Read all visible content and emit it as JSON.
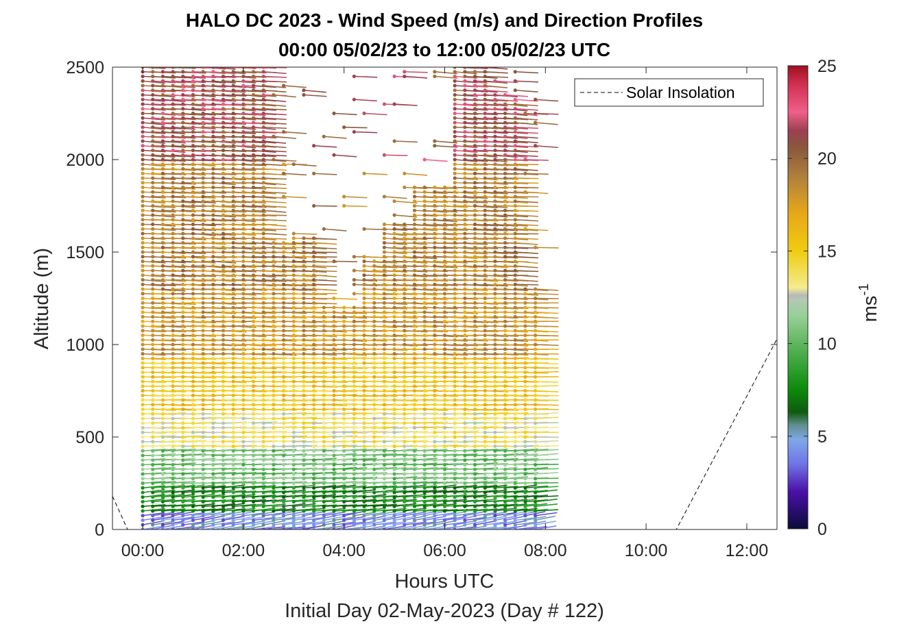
{
  "chart_data": {
    "type": "wind-barb-profile",
    "title": "HALO DC 2023 - Wind Speed (m/s) and Direction Profiles",
    "subtitle": "00:00 05/02/23 to 12:00 05/02/23  UTC",
    "xlabel": "Hours UTC",
    "xlabel2": "Initial Day 02-May-2023 (Day # 122)",
    "ylabel": "Altitude (m)",
    "xlim": [
      -0.6,
      12.6
    ],
    "ylim": [
      0,
      2500
    ],
    "x_ticks": [
      0,
      2,
      4,
      6,
      8,
      10,
      12
    ],
    "x_tick_labels": [
      "00:00",
      "02:00",
      "04:00",
      "06:00",
      "08:00",
      "10:00",
      "12:00"
    ],
    "y_ticks": [
      0,
      500,
      1000,
      1500,
      2000,
      2500
    ],
    "y_tick_labels": [
      "0",
      "500",
      "1000",
      "1500",
      "2000",
      "2500"
    ],
    "colorbar": {
      "label": "ms",
      "label_exponent": "-1",
      "range": [
        0,
        25
      ],
      "ticks": [
        0,
        5,
        10,
        15,
        20,
        25
      ],
      "tick_labels": [
        "0",
        "5",
        "10",
        "15",
        "20",
        "25"
      ],
      "stops": [
        {
          "v": 0,
          "c": "#0b0b3a"
        },
        {
          "v": 2,
          "c": "#4a10a8"
        },
        {
          "v": 3.5,
          "c": "#6f74e6"
        },
        {
          "v": 4.8,
          "c": "#7fa8e8"
        },
        {
          "v": 5.6,
          "c": "#5f8f8f"
        },
        {
          "v": 6.3,
          "c": "#0f5a0f"
        },
        {
          "v": 7.5,
          "c": "#0b8a0b"
        },
        {
          "v": 9.5,
          "c": "#4cae4c"
        },
        {
          "v": 11.5,
          "c": "#98d098"
        },
        {
          "v": 12.4,
          "c": "#b4c8b4"
        },
        {
          "v": 12.6,
          "c": "#b8b8b8"
        },
        {
          "v": 13,
          "c": "#f4ec90"
        },
        {
          "v": 15,
          "c": "#f0cc10"
        },
        {
          "v": 17,
          "c": "#e8a818"
        },
        {
          "v": 19,
          "c": "#b0803c"
        },
        {
          "v": 20.5,
          "c": "#8a5a3c"
        },
        {
          "v": 21.5,
          "c": "#9a4050"
        },
        {
          "v": 22.5,
          "c": "#f06088"
        },
        {
          "v": 24,
          "c": "#d03050"
        },
        {
          "v": 25,
          "c": "#a01020"
        }
      ]
    },
    "legend": {
      "entries": [
        "Solar Insolation"
      ],
      "placement": "top-right",
      "line_style": "dashed"
    },
    "solar_insolation": {
      "x": [
        -0.6,
        -0.3,
        10.6,
        12.6
      ],
      "y": [
        180,
        0,
        0,
        1030
      ]
    },
    "wind_profiles": {
      "description_of_encoding": "",
      "times_hours": [
        0,
        0.2,
        0.4,
        0.6,
        0.8,
        1.0,
        1.2,
        1.4,
        1.6,
        1.8,
        2.0,
        2.2,
        2.4,
        2.6,
        2.8,
        3.0,
        3.2,
        3.4,
        3.6,
        3.8,
        4.0,
        4.2,
        4.4,
        4.6,
        4.8,
        5.0,
        5.2,
        5.4,
        5.6,
        5.8,
        6.0,
        6.2,
        6.4,
        6.6,
        6.8,
        7.0,
        7.2,
        7.4,
        7.6,
        7.8
      ],
      "altitude_step_m": 25,
      "max_altitude_m": 2500,
      "speed_layers": [
        {
          "alt_range": [
            0,
            100
          ],
          "speed": 4.2,
          "dir_from_deg": 245
        },
        {
          "alt_range": [
            100,
            250
          ],
          "speed": 7.5,
          "dir_from_deg": 255
        },
        {
          "alt_range": [
            250,
            450
          ],
          "speed": 10.5,
          "dir_from_deg": 262
        },
        {
          "alt_range": [
            450,
            650
          ],
          "speed": 13.5,
          "dir_from_deg": 268
        },
        {
          "alt_range": [
            650,
            950
          ],
          "speed": 15.5,
          "dir_from_deg": 272
        },
        {
          "alt_range": [
            950,
            1300
          ],
          "speed": 18,
          "dir_from_deg": 275
        },
        {
          "alt_range": [
            1300,
            2000
          ],
          "speed": 19,
          "dir_from_deg": 278
        },
        {
          "alt_range": [
            2000,
            2500
          ],
          "speed": 21,
          "dir_from_deg": 280
        }
      ]
    }
  }
}
